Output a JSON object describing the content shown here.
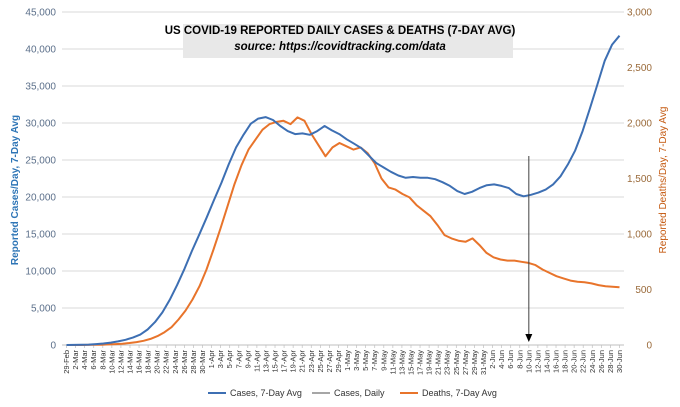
{
  "chart_data": {
    "type": "line",
    "title": "US COVID-19 REPORTED DAILY CASES & DEATHS (7-DAY AVG)",
    "subtitle": "source: https://covidtracking.com/data",
    "ylabel_left": "Reported Cases/Day, 7-Day Avg",
    "ylabel_right": "Reported Deaths/Day, 7-Day Avg",
    "ylim_left": [
      0,
      45000
    ],
    "ylim_right": [
      0,
      3000
    ],
    "yticks_left": [
      "0",
      "5,000",
      "10,000",
      "15,000",
      "20,000",
      "25,000",
      "30,000",
      "35,000",
      "40,000",
      "45,000"
    ],
    "yticks_right": [
      "0",
      "500",
      "1,000",
      "1,500",
      "2,000",
      "2,500",
      "3,000"
    ],
    "x_tick_labels": [
      "29-Feb",
      "2-Mar",
      "4-Mar",
      "6-Mar",
      "8-Mar",
      "10-Mar",
      "12-Mar",
      "14-Mar",
      "16-Mar",
      "18-Mar",
      "20-Mar",
      "22-Mar",
      "24-Mar",
      "26-Mar",
      "28-Mar",
      "30-Mar",
      "1-Apr",
      "3-Apr",
      "5-Apr",
      "7-Apr",
      "9-Apr",
      "11-Apr",
      "13-Apr",
      "15-Apr",
      "17-Apr",
      "19-Apr",
      "21-Apr",
      "23-Apr",
      "25-Apr",
      "27-Apr",
      "29-Apr",
      "1-May",
      "3-May",
      "5-May",
      "7-May",
      "9-May",
      "11-May",
      "13-May",
      "15-May",
      "17-May",
      "19-May",
      "21-May",
      "23-May",
      "25-May",
      "27-May",
      "29-May",
      "31-May",
      "2-Jun",
      "4-Jun",
      "6-Jun",
      "8-Jun",
      "10-Jun",
      "12-Jun",
      "14-Jun",
      "16-Jun",
      "18-Jun",
      "20-Jun",
      "22-Jun",
      "24-Jun",
      "26-Jun",
      "28-Jun",
      "30-Jun"
    ],
    "grid": true,
    "legend_position": "bottom",
    "colors": {
      "cases": "#3d6fb3",
      "daily": "#a6a6a6",
      "deaths": "#e8742b",
      "annotation": "#404040"
    },
    "annotation_arrow_index": 51,
    "series": [
      {
        "name": "Cases, 7-Day Avg",
        "axis": "left",
        "values": [
          0,
          10,
          30,
          60,
          120,
          200,
          320,
          480,
          700,
          1000,
          1400,
          2100,
          3100,
          4400,
          6100,
          8100,
          10300,
          12700,
          14900,
          17200,
          19600,
          21900,
          24400,
          26700,
          28400,
          29900,
          30600,
          30800,
          30400,
          29600,
          28900,
          28500,
          28600,
          28400,
          28900,
          29600,
          29000,
          28500,
          27800,
          27200,
          26600,
          25600,
          24600,
          24000,
          23400,
          22900,
          22600,
          22700,
          22600,
          22600,
          22400,
          22000,
          21500,
          20800,
          20400,
          20700,
          21200,
          21600,
          21700,
          21500,
          21200,
          20400,
          20100,
          20300,
          20600,
          21000,
          21700,
          22800,
          24400,
          26300,
          28900,
          32000,
          35200,
          38400,
          40600,
          41800
        ],
        "x_indices": [
          0,
          1,
          2,
          3,
          4,
          5,
          6,
          7,
          8,
          9,
          10,
          11,
          12,
          13,
          14,
          15,
          16,
          17,
          18,
          19,
          20,
          21,
          22,
          23,
          24,
          25,
          26,
          27,
          28,
          29,
          30,
          31,
          32,
          33,
          34,
          35,
          36,
          37,
          38,
          39,
          40,
          41,
          42,
          43,
          44,
          45,
          46,
          47,
          48,
          49,
          50,
          51,
          52,
          53,
          54,
          55,
          56,
          57,
          58,
          59,
          60,
          61,
          62,
          63,
          64,
          65,
          66,
          67,
          68,
          69,
          70,
          71,
          72,
          73,
          74,
          75
        ]
      },
      {
        "name": "Cases, Daily",
        "axis": "left",
        "values": []
      },
      {
        "name": "Deaths, 7-Day Avg",
        "axis": "right",
        "values": [
          0,
          0,
          0,
          1,
          2,
          3,
          5,
          8,
          12,
          18,
          26,
          38,
          55,
          80,
          115,
          160,
          230,
          310,
          410,
          530,
          680,
          860,
          1050,
          1250,
          1450,
          1620,
          1760,
          1850,
          1940,
          1990,
          2010,
          2020,
          1990,
          2050,
          2020,
          1900,
          1800,
          1700,
          1780,
          1820,
          1790,
          1760,
          1780,
          1730,
          1640,
          1500,
          1420,
          1400,
          1360,
          1330,
          1260,
          1210,
          1160,
          1080,
          990,
          960,
          940,
          930,
          960,
          900,
          830,
          790,
          770,
          760,
          760,
          750,
          740,
          720,
          680,
          650,
          620,
          600,
          580,
          570,
          565,
          555,
          540,
          530,
          525,
          520
        ]
      }
    ]
  },
  "legend": {
    "cases": "Cases, 7-Day Avg",
    "daily": "Cases, Daily",
    "deaths": "Deaths, 7-Day Avg"
  }
}
